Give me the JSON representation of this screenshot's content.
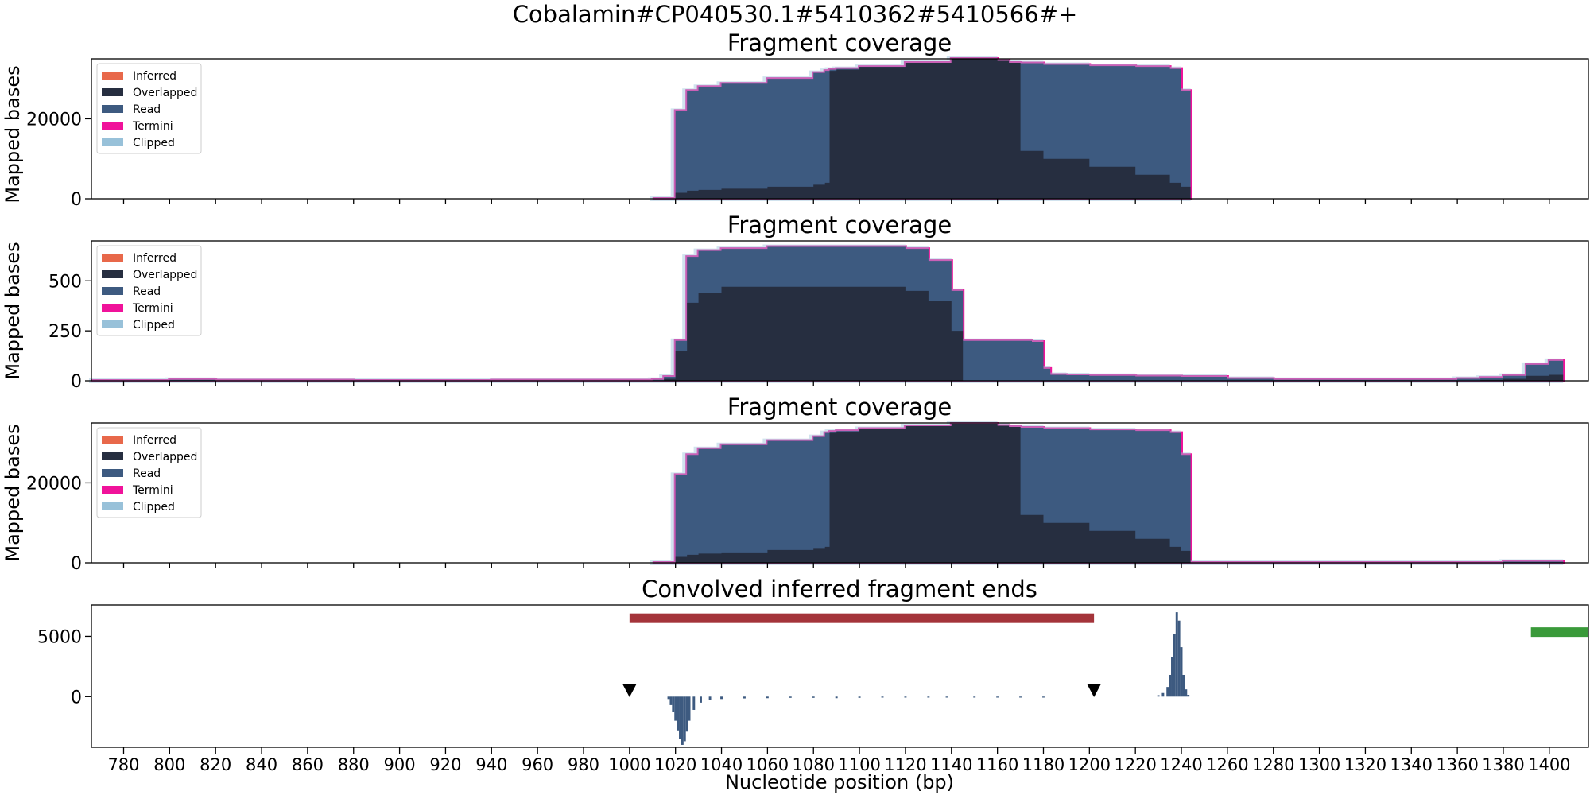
{
  "suptitle": "Cobalamin#CP040530.1#5410362#5410566#+",
  "colors": {
    "inferred": "#e8684a",
    "overlapped": "#262e40",
    "read": "#3d5a80",
    "termini": "#f0129a",
    "clipped": "#98c1d9",
    "conv": "#3d5a80",
    "red_bar": "#a4343a",
    "green_bar": "#3a9a3a",
    "marker": "#000000"
  },
  "legend_items": [
    "Inferred",
    "Overlapped",
    "Read",
    "Termini",
    "Clipped"
  ],
  "x_axis": {
    "label": "Nucleotide position (bp)",
    "range": [
      766,
      1417
    ],
    "ticks": [
      780,
      800,
      820,
      840,
      860,
      880,
      900,
      920,
      940,
      960,
      980,
      1000,
      1020,
      1040,
      1060,
      1080,
      1100,
      1120,
      1140,
      1160,
      1180,
      1200,
      1220,
      1240,
      1260,
      1280,
      1300,
      1320,
      1340,
      1360,
      1380,
      1400
    ]
  },
  "chart_data": [
    {
      "type": "area",
      "title": "Fragment coverage",
      "ylabel": "Mapped bases",
      "ylim": [
        0,
        35000
      ],
      "yticks": [
        0,
        20000
      ],
      "legend": "top-left",
      "x": [
        1010,
        1020,
        1025,
        1030,
        1040,
        1060,
        1080,
        1085,
        1087,
        1090,
        1100,
        1120,
        1140,
        1160,
        1165,
        1170,
        1180,
        1200,
        1220,
        1235,
        1240,
        1244
      ],
      "series": [
        {
          "name": "Read",
          "values": [
            0,
            22000,
            27000,
            28000,
            28800,
            30000,
            31500,
            32000,
            32300,
            32500,
            33000,
            34000,
            35000,
            34500,
            34000,
            33900,
            33500,
            33200,
            33000,
            32500,
            27000,
            0
          ]
        },
        {
          "name": "Overlapped",
          "values": [
            0,
            1500,
            2000,
            2200,
            2500,
            3000,
            3500,
            4000,
            32000,
            32300,
            33000,
            34000,
            35000,
            34500,
            34000,
            12000,
            10000,
            8000,
            6000,
            4000,
            3000,
            0
          ]
        }
      ]
    },
    {
      "type": "area",
      "title": "Fragment coverage",
      "ylabel": "Mapped bases",
      "ylim": [
        0,
        700
      ],
      "yticks": [
        0,
        250,
        500
      ],
      "legend": "top-left",
      "x": [
        766,
        795,
        800,
        815,
        820,
        840,
        860,
        880,
        900,
        920,
        940,
        960,
        980,
        1000,
        1010,
        1015,
        1020,
        1025,
        1030,
        1040,
        1060,
        1080,
        1100,
        1120,
        1130,
        1140,
        1145,
        1150,
        1160,
        1175,
        1180,
        1183,
        1190,
        1200,
        1220,
        1240,
        1260,
        1280,
        1300,
        1320,
        1340,
        1360,
        1370,
        1380,
        1390,
        1400,
        1406
      ],
      "series": [
        {
          "name": "Read",
          "values": [
            0,
            0,
            5,
            5,
            2,
            2,
            2,
            0,
            0,
            0,
            2,
            2,
            2,
            2,
            5,
            20,
            200,
            620,
            650,
            660,
            670,
            670,
            670,
            660,
            600,
            450,
            200,
            200,
            200,
            195,
            60,
            30,
            28,
            25,
            22,
            20,
            10,
            5,
            5,
            5,
            5,
            10,
            15,
            25,
            80,
            100,
            110
          ]
        },
        {
          "name": "Overlapped",
          "values": [
            0,
            0,
            2,
            2,
            1,
            1,
            1,
            0,
            0,
            0,
            1,
            1,
            1,
            1,
            2,
            10,
            150,
            390,
            440,
            470,
            470,
            470,
            470,
            450,
            400,
            250,
            0,
            0,
            0,
            0,
            0,
            0,
            0,
            0,
            0,
            0,
            0,
            0,
            0,
            0,
            0,
            2,
            5,
            10,
            25,
            30,
            30
          ]
        }
      ]
    },
    {
      "type": "area",
      "title": "Fragment coverage",
      "ylabel": "Mapped bases",
      "ylim": [
        0,
        35000
      ],
      "yticks": [
        0,
        20000
      ],
      "legend": "top-left",
      "x": [
        1010,
        1020,
        1025,
        1030,
        1040,
        1060,
        1080,
        1085,
        1087,
        1090,
        1100,
        1120,
        1140,
        1160,
        1165,
        1170,
        1180,
        1200,
        1220,
        1235,
        1240,
        1244,
        1380,
        1400,
        1406
      ],
      "series": [
        {
          "name": "Read",
          "values": [
            0,
            22000,
            27000,
            28500,
            29500,
            30500,
            31500,
            32500,
            32800,
            33000,
            33500,
            34200,
            34800,
            34300,
            34000,
            33800,
            33500,
            33200,
            33000,
            32500,
            27000,
            0,
            300,
            300,
            0
          ]
        },
        {
          "name": "Overlapped",
          "values": [
            0,
            1500,
            2000,
            2300,
            2600,
            3200,
            3700,
            4000,
            32500,
            32800,
            33500,
            34200,
            34800,
            34300,
            34000,
            12000,
            10000,
            8000,
            6000,
            4000,
            3000,
            0,
            100,
            100,
            0
          ]
        }
      ]
    },
    {
      "type": "bar",
      "title": "Convolved inferred fragment ends",
      "ylabel": "",
      "ylim": [
        -4200,
        7600
      ],
      "yticks": [
        0,
        5000
      ],
      "x": [
        1017,
        1018,
        1019,
        1020,
        1021,
        1022,
        1023,
        1024,
        1025,
        1026,
        1028,
        1031,
        1035,
        1040,
        1050,
        1060,
        1070,
        1080,
        1090,
        1100,
        1110,
        1120,
        1130,
        1138,
        1150,
        1160,
        1170,
        1180,
        1230,
        1232,
        1234,
        1235,
        1236,
        1237,
        1238,
        1239,
        1240,
        1241,
        1242,
        1243
      ],
      "values": [
        -200,
        -700,
        -1300,
        -2000,
        -2800,
        -3500,
        -4000,
        -3700,
        -2900,
        -2000,
        -1100,
        -500,
        -300,
        -200,
        -150,
        -130,
        -100,
        -100,
        -130,
        -100,
        -80,
        -60,
        -50,
        -40,
        0,
        0,
        0,
        0,
        120,
        300,
        800,
        1800,
        3300,
        5200,
        7000,
        6300,
        4100,
        1800,
        600,
        150
      ],
      "segments": [
        {
          "from": 1000,
          "to": 1202,
          "y": 6500,
          "color": "red_bar"
        },
        {
          "from": 1392,
          "to": 1417,
          "y": 5350,
          "color": "green_bar"
        }
      ],
      "markers": [
        {
          "x": 1000,
          "y": 550
        },
        {
          "x": 1202,
          "y": 550
        }
      ]
    }
  ]
}
